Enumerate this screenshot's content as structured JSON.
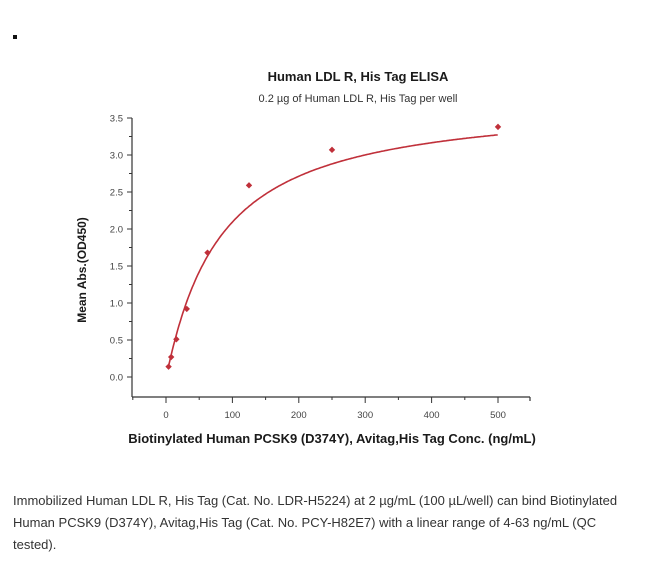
{
  "bullet": "•",
  "chart_data": {
    "type": "scatter",
    "title": "Human LDL R, His Tag ELISA",
    "subtitle": "0.2 µg of Human LDL R, His Tag per well",
    "xlabel": "Biotinylated Human PCSK9 (D374Y), Avitag,His Tag Conc. (ng/mL)",
    "ylabel": "Mean Abs.(OD450)",
    "xlim": [
      -50,
      550
    ],
    "ylim": [
      -0.27,
      3.5
    ],
    "xticks": [
      0,
      100,
      200,
      300,
      400,
      500
    ],
    "xtick_labels": [
      "0",
      "100",
      "200",
      "300",
      "400",
      "500"
    ],
    "yticks": [
      0.0,
      0.5,
      1.0,
      1.5,
      2.0,
      2.5,
      3.0,
      3.5
    ],
    "ytick_labels": [
      "0.0",
      "0.5",
      "1.0",
      "1.5",
      "2.0",
      "2.5",
      "3.0",
      "3.5"
    ],
    "grid": false,
    "legend": null,
    "series": [
      {
        "name": "Mean Abs.(OD450)",
        "color": "#c0303a",
        "marker": "diamond",
        "x": [
          3.9,
          7.8,
          15.6,
          31.3,
          62.5,
          125,
          250,
          500
        ],
        "y": [
          0.14,
          0.27,
          0.51,
          0.92,
          1.68,
          2.59,
          3.07,
          3.38
        ]
      }
    ],
    "fit_curve": {
      "type": "4PL",
      "color": "#c0303a"
    }
  },
  "caption": "Immobilized Human LDL R, His Tag (Cat. No. LDR-H5224) at 2 µg/mL (100 µL/well) can bind Biotinylated Human PCSK9 (D374Y), Avitag,His Tag (Cat. No. PCY-H82E7) with a linear range of 4-63 ng/mL (QC tested)."
}
